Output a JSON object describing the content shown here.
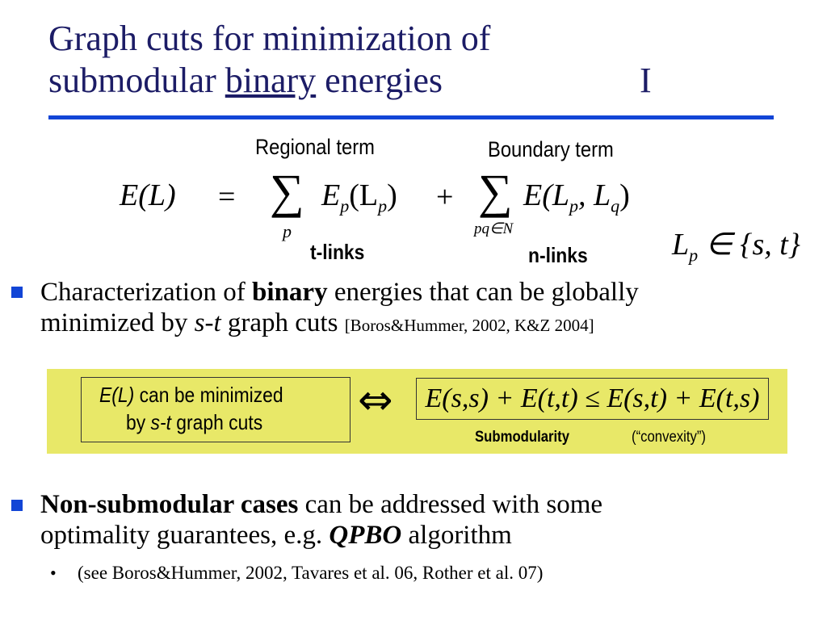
{
  "title": {
    "line1": "Graph cuts for minimization of",
    "line2_prefix": "submodular ",
    "line2_underlined": "binary",
    "line2_suffix": " energies",
    "part": "I"
  },
  "equation": {
    "regional_label": "Regional term",
    "boundary_label": "Boundary term",
    "lhs": "E(L)",
    "equals": "=",
    "sum_symbol": "∑",
    "term1": "E",
    "term1_sub": "p",
    "term1_arg": "(L",
    "term1_arg_sub": "p",
    "term1_close": ")",
    "plus": "+",
    "term2": "E(L",
    "term2_sub1": "p",
    "term2_mid": ", L",
    "term2_sub2": "q",
    "term2_close": ")",
    "sum1_index": "p",
    "sum2_index": "pq∈N",
    "tlinks": "t-links",
    "nlinks": "n-links",
    "label_set_L": "L",
    "label_set_sub": "p",
    "label_set_rest": "∈ {s, t}"
  },
  "bullets": [
    {
      "pre": "Characterization of ",
      "bold": "binary",
      "mid": " energies that can be globally",
      "line2_pre": "minimized by ",
      "italic": "s-t",
      "line2_post": " graph cuts ",
      "cite": "[Boros&Hummer, 2002, K&Z 2004]"
    },
    {
      "bold": "Non-submodular cases",
      "mid": " can be addressed with some",
      "line2_pre": "optimality guarantees, e.g. ",
      "bold_italic": "QPBO",
      "line2_post": " algorithm"
    }
  ],
  "sub_bullet": {
    "marker": "•",
    "text": "(see Boros&Hummer, 2002,  Tavares et al. 06, Rother et al. 07)"
  },
  "highlight": {
    "left_italic1": "E(L)",
    "left_text1": " can be minimized",
    "left_text2_pre": "by ",
    "left_italic2": "s-t",
    "left_text2_post": " graph cuts",
    "iff": "⇔",
    "inequality": "E(s,s) + E(t,t) ≤ E(s,t) + E(t,s)",
    "submodularity": "Submodularity",
    "convexity": "(“convexity”)"
  },
  "colors": {
    "title": "#1c1c66",
    "accent": "#1245d6",
    "highlight": "#e8e868"
  }
}
